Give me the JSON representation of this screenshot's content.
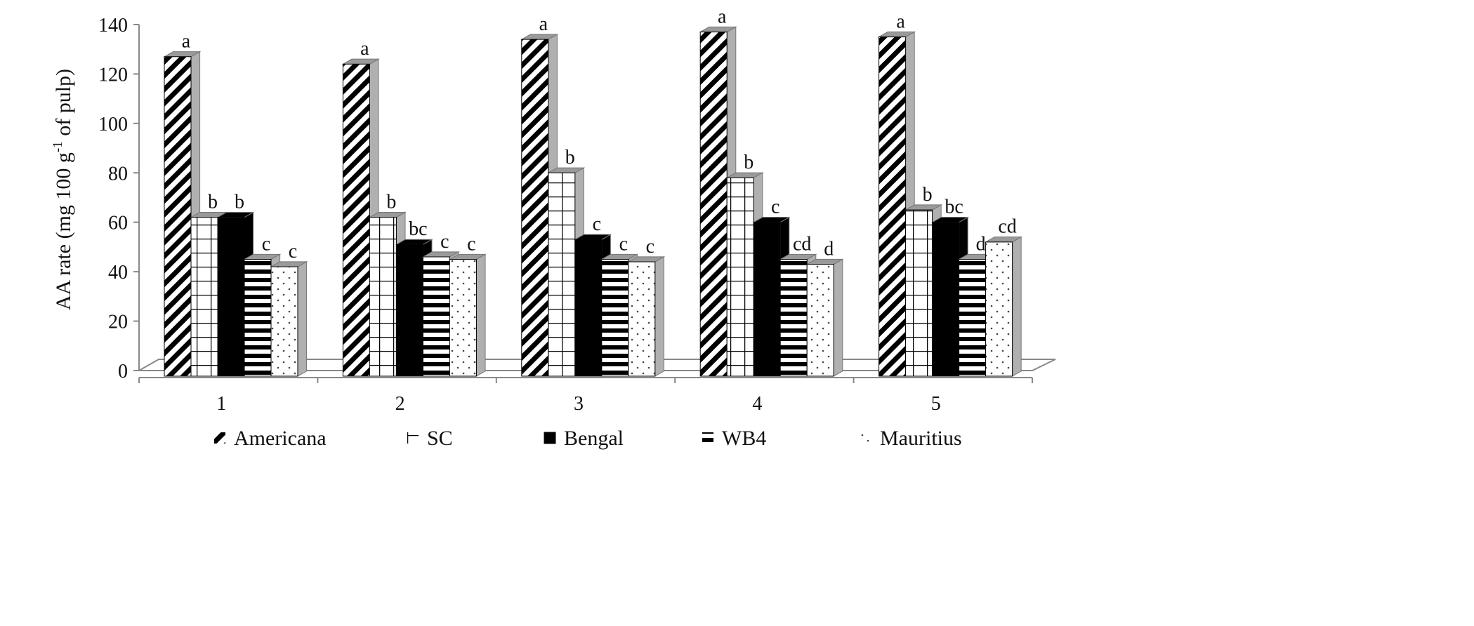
{
  "chart_data": {
    "type": "bar",
    "variant": "3d-clustered",
    "title": "",
    "xlabel": "",
    "ylabel": "AA rate (mg 100 g-1 of pulp)",
    "ylabel_parts": {
      "before": "AA rate (mg 100 g",
      "sup": "-1",
      "after": " of pulp)"
    },
    "ylim": [
      0,
      140
    ],
    "yticks": [
      "0",
      "20",
      "40",
      "60",
      "80",
      "100",
      "120",
      "140"
    ],
    "categories": [
      "1",
      "2",
      "3",
      "4",
      "5"
    ],
    "grid": false,
    "legend_placement": "bottom",
    "series": [
      {
        "name": "Americana",
        "pattern": "diagonal-stripes",
        "values": [
          127,
          124,
          134,
          137,
          135
        ],
        "letters": [
          "a",
          "a",
          "a",
          "a",
          "a"
        ]
      },
      {
        "name": "SC",
        "pattern": "grid",
        "values": [
          62,
          62,
          80,
          78,
          65
        ],
        "letters": [
          "b",
          "b",
          "b",
          "b",
          "b"
        ]
      },
      {
        "name": "Bengal",
        "pattern": "solid-black",
        "values": [
          62,
          51,
          53,
          60,
          60
        ],
        "letters": [
          "b",
          "bc",
          "c",
          "c",
          "bc"
        ]
      },
      {
        "name": "WB4",
        "pattern": "horizontal-stripes",
        "values": [
          45,
          46,
          45,
          45,
          45
        ],
        "letters": [
          "c",
          "c",
          "c",
          "cd",
          "d"
        ]
      },
      {
        "name": "Mauritius",
        "pattern": "dots",
        "values": [
          42,
          45,
          44,
          43,
          52
        ],
        "letters": [
          "c",
          "c",
          "c",
          "d",
          "cd"
        ]
      }
    ],
    "colors": {
      "ink": "#000000",
      "side": "#b0b0b0",
      "axis": "#888888"
    }
  }
}
